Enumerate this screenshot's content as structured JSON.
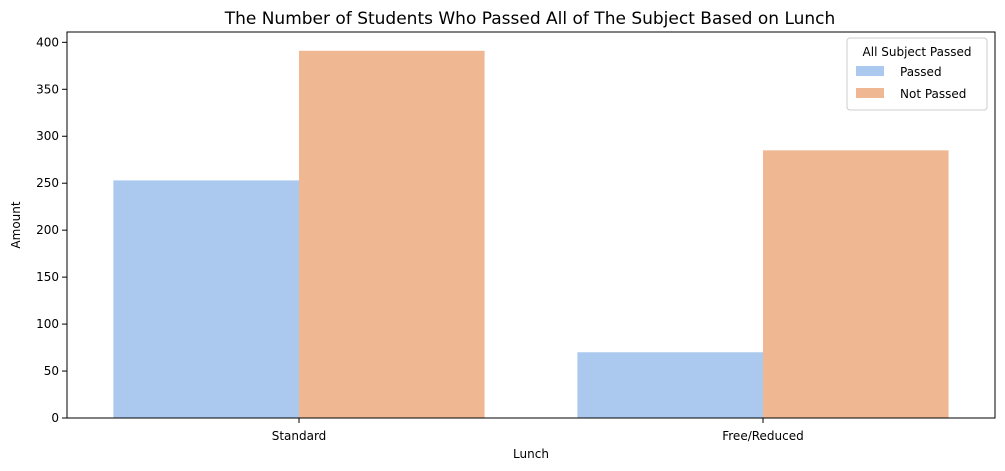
{
  "chart_data": {
    "type": "bar",
    "title": "The Number of Students Who Passed All of The Subject Based on Lunch",
    "xlabel": "Lunch",
    "ylabel": "Amount",
    "categories": [
      "Standard",
      "Free/Reduced"
    ],
    "series": [
      {
        "name": "Passed",
        "values": [
          253,
          70
        ],
        "color": "#abc9ee"
      },
      {
        "name": "Not Passed",
        "values": [
          391,
          285
        ],
        "color": "#f0b793"
      }
    ],
    "ylim": [
      0,
      411
    ],
    "yticks": [
      0,
      50,
      100,
      150,
      200,
      250,
      300,
      350,
      400
    ],
    "grid": false,
    "legend": {
      "title": "All Subject Passed",
      "position": "top-right"
    }
  }
}
